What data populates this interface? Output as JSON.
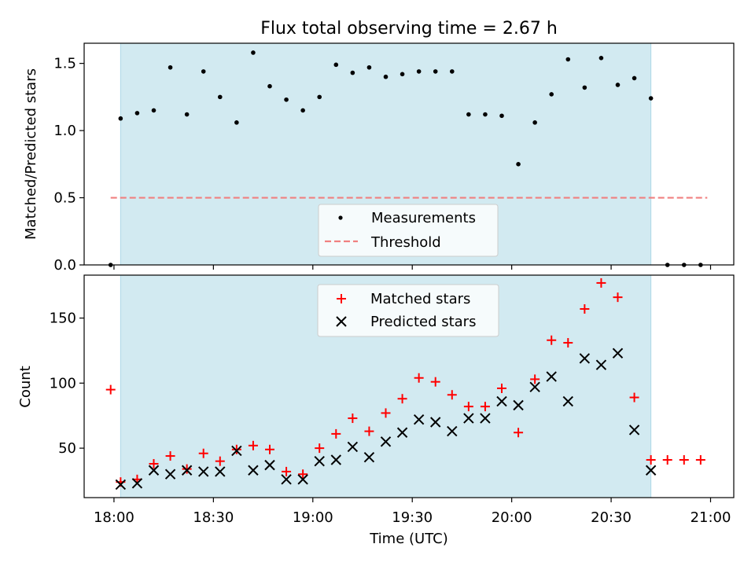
{
  "chart_data": {
    "title": "Flux total observing time = 2.67 h",
    "xlabel": "Time (UTC)",
    "x_ticks": [
      "18:00",
      "18:30",
      "19:00",
      "19:30",
      "20:00",
      "20:30",
      "21:00"
    ],
    "shaded_span": {
      "start": "18:02",
      "end": "20:42",
      "color": "#add8e6"
    },
    "panels": [
      {
        "type": "scatter",
        "ylabel": "Matched/Predicted stars",
        "ylim": [
          0,
          1.65
        ],
        "y_ticks": [
          0.0,
          0.5,
          1.0,
          1.5
        ],
        "y_tick_labels": [
          "0.0",
          "0.5",
          "1.0",
          "1.5"
        ],
        "legend": "bottom-center",
        "series": [
          {
            "name": "Measurements",
            "marker": "dot",
            "color": "#000000",
            "x": [
              "17:59",
              "18:02",
              "18:07",
              "18:12",
              "18:17",
              "18:22",
              "18:27",
              "18:32",
              "18:37",
              "18:42",
              "18:47",
              "18:52",
              "18:57",
              "19:02",
              "19:07",
              "19:12",
              "19:17",
              "19:22",
              "19:27",
              "19:32",
              "19:37",
              "19:42",
              "19:47",
              "19:52",
              "19:57",
              "20:02",
              "20:07",
              "20:12",
              "20:17",
              "20:22",
              "20:27",
              "20:32",
              "20:37",
              "20:42",
              "20:47",
              "20:52",
              "20:57"
            ],
            "y": [
              0.0,
              1.09,
              1.13,
              1.15,
              1.47,
              1.12,
              1.44,
              1.25,
              1.06,
              1.58,
              1.33,
              1.23,
              1.15,
              1.25,
              1.49,
              1.43,
              1.47,
              1.4,
              1.42,
              1.44,
              1.44,
              1.44,
              1.12,
              1.12,
              1.11,
              0.75,
              1.06,
              1.27,
              1.53,
              1.32,
              1.54,
              1.34,
              1.39,
              1.24,
              0.0,
              0.0,
              0.0
            ]
          },
          {
            "name": "Threshold",
            "type": "hline",
            "y": 0.5,
            "x_range": [
              "17:59",
              "20:59"
            ],
            "color": "#f08080",
            "style": "dashed"
          }
        ]
      },
      {
        "type": "scatter",
        "ylabel": "Count",
        "ylim": [
          12,
          183
        ],
        "y_ticks": [
          50,
          100,
          150
        ],
        "y_tick_labels": [
          "50",
          "100",
          "150"
        ],
        "legend": "top-center",
        "series": [
          {
            "name": "Matched stars",
            "marker": "plus",
            "color": "#ff0000",
            "x": [
              "17:59",
              "18:02",
              "18:07",
              "18:12",
              "18:17",
              "18:22",
              "18:27",
              "18:32",
              "18:37",
              "18:42",
              "18:47",
              "18:52",
              "18:57",
              "19:02",
              "19:07",
              "19:12",
              "19:17",
              "19:22",
              "19:27",
              "19:32",
              "19:37",
              "19:42",
              "19:47",
              "19:52",
              "19:57",
              "20:02",
              "20:07",
              "20:12",
              "20:17",
              "20:22",
              "20:27",
              "20:32",
              "20:37",
              "20:42",
              "20:47",
              "20:52",
              "20:57"
            ],
            "y": [
              95,
              24,
              26,
              38,
              44,
              34,
              46,
              40,
              49,
              52,
              49,
              32,
              30,
              50,
              61,
              73,
              63,
              77,
              88,
              104,
              101,
              91,
              82,
              82,
              96,
              62,
              103,
              133,
              131,
              157,
              177,
              166,
              89,
              41,
              41,
              41,
              41
            ]
          },
          {
            "name": "Predicted stars",
            "marker": "x",
            "color": "#000000",
            "x": [
              "18:02",
              "18:07",
              "18:12",
              "18:17",
              "18:22",
              "18:27",
              "18:32",
              "18:37",
              "18:42",
              "18:47",
              "18:52",
              "18:57",
              "19:02",
              "19:07",
              "19:12",
              "19:17",
              "19:22",
              "19:27",
              "19:32",
              "19:37",
              "19:42",
              "19:47",
              "19:52",
              "19:57",
              "20:02",
              "20:07",
              "20:12",
              "20:17",
              "20:22",
              "20:27",
              "20:32",
              "20:37",
              "20:42"
            ],
            "y": [
              22,
              23,
              33,
              30,
              33,
              32,
              32,
              48,
              33,
              37,
              26,
              26,
              40,
              41,
              51,
              43,
              55,
              62,
              72,
              70,
              63,
              73,
              73,
              86,
              83,
              97,
              105,
              86,
              119,
              114,
              123,
              64,
              33
            ]
          }
        ]
      }
    ]
  }
}
